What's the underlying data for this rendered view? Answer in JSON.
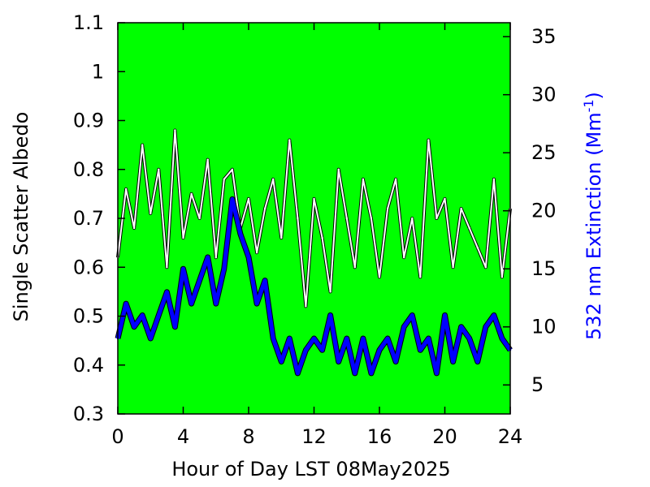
{
  "chart_data": {
    "type": "line",
    "xlabel": "Hour of Day LST 08May2025",
    "ylabel_left": "Single Scatter Albedo",
    "ylabel_right": {
      "main": "532 nm Extinction (Mm",
      "sup": "-1",
      "close": ")"
    },
    "xlim": [
      0,
      24
    ],
    "ylim_left": [
      0.3,
      1.1
    ],
    "ylim_right": [
      2.5,
      36.2
    ],
    "x_ticks": [
      0,
      4,
      8,
      12,
      16,
      20,
      24
    ],
    "y_left_ticks": [
      0.3,
      0.4,
      0.5,
      0.6,
      0.7,
      0.8,
      0.9,
      1,
      1.1
    ],
    "y_right_ticks": [
      5,
      10,
      15,
      20,
      25,
      30,
      35
    ],
    "grid": false,
    "legend": "none",
    "background_color": "#00ff00",
    "series": [
      {
        "axis": "left",
        "color": "#ffffff",
        "x": [
          0,
          0.5,
          1,
          1.5,
          2,
          2.5,
          3,
          3.5,
          4,
          4.5,
          5,
          5.5,
          6,
          6.5,
          7,
          7.5,
          8,
          8.5,
          9,
          9.5,
          10,
          10.5,
          11,
          11.5,
          12,
          12.5,
          13,
          13.5,
          14,
          14.5,
          15,
          15.5,
          16,
          16.5,
          17,
          17.5,
          18,
          18.5,
          19,
          19.5,
          20,
          20.5,
          21,
          21.5,
          22,
          22.5,
          23,
          23.5,
          24
        ],
        "values": [
          0.62,
          0.76,
          0.68,
          0.85,
          0.71,
          0.8,
          0.6,
          0.88,
          0.66,
          0.75,
          0.7,
          0.82,
          0.62,
          0.78,
          0.8,
          0.68,
          0.74,
          0.63,
          0.72,
          0.78,
          0.66,
          0.86,
          0.7,
          0.52,
          0.74,
          0.66,
          0.55,
          0.8,
          0.7,
          0.6,
          0.78,
          0.7,
          0.58,
          0.72,
          0.78,
          0.62,
          0.7,
          0.58,
          0.86,
          0.7,
          0.74,
          0.6,
          0.72,
          0.68,
          0.64,
          0.6,
          0.78,
          0.58,
          0.72
        ]
      },
      {
        "axis": "right",
        "color": "#0000ff",
        "x": [
          0,
          0.5,
          1,
          1.5,
          2,
          2.5,
          3,
          3.5,
          4,
          4.5,
          5,
          5.5,
          6,
          6.5,
          7,
          7.5,
          8,
          8.5,
          9,
          9.5,
          10,
          10.5,
          11,
          11.5,
          12,
          12.5,
          13,
          13.5,
          14,
          14.5,
          15,
          15.5,
          16,
          16.5,
          17,
          17.5,
          18,
          18.5,
          19,
          19.5,
          20,
          20.5,
          21,
          21.5,
          22,
          22.5,
          23,
          23.5,
          24
        ],
        "values": [
          9,
          12,
          10,
          11,
          9,
          11,
          13,
          10,
          15,
          12,
          14,
          16,
          12,
          15,
          21,
          18,
          16,
          12,
          14,
          9,
          7,
          9,
          6,
          8,
          9,
          8,
          11,
          7,
          9,
          6,
          9,
          6,
          8,
          9,
          7,
          10,
          11,
          8,
          9,
          6,
          11,
          7,
          10,
          9,
          7,
          10,
          11,
          9,
          8
        ]
      }
    ]
  }
}
